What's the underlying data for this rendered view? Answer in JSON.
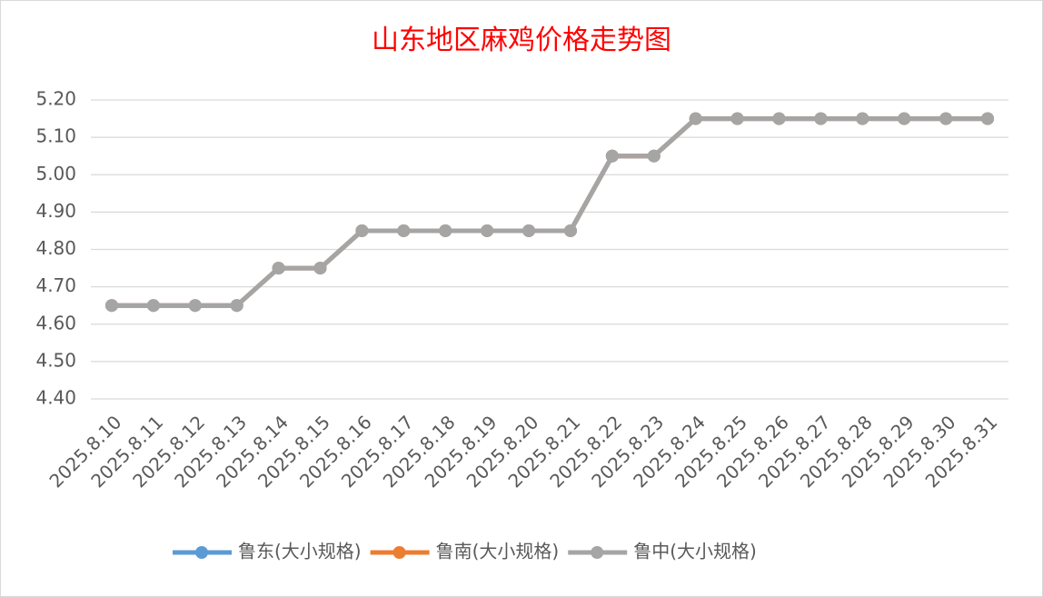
{
  "chart_data": {
    "type": "line",
    "title": "山东地区麻鸡价格走势图",
    "categories": [
      "2025.8.10",
      "2025.8.11",
      "2025.8.12",
      "2025.8.13",
      "2025.8.14",
      "2025.8.15",
      "2025.8.16",
      "2025.8.17",
      "2025.8.18",
      "2025.8.19",
      "2025.8.20",
      "2025.8.21",
      "2025.8.22",
      "2025.8.23",
      "2025.8.24",
      "2025.8.25",
      "2025.8.26",
      "2025.8.27",
      "2025.8.28",
      "2025.8.29",
      "2025.8.30",
      "2025.8.31"
    ],
    "series": [
      {
        "name": "鲁东(大小规格)",
        "color": "#5b9bd5",
        "values": [
          4.65,
          4.65,
          4.65,
          4.65,
          4.75,
          4.75,
          4.85,
          4.85,
          4.85,
          4.85,
          4.85,
          4.85,
          5.05,
          5.05,
          5.15,
          5.15,
          5.15,
          5.15,
          5.15,
          5.15,
          5.15,
          5.15
        ]
      },
      {
        "name": "鲁南(大小规格)",
        "color": "#ed7d31",
        "values": [
          4.65,
          4.65,
          4.65,
          4.65,
          4.75,
          4.75,
          4.85,
          4.85,
          4.85,
          4.85,
          4.85,
          4.85,
          5.05,
          5.05,
          5.15,
          5.15,
          5.15,
          5.15,
          5.15,
          5.15,
          5.15,
          5.15
        ]
      },
      {
        "name": "鲁中(大小规格)",
        "color": "#a5a5a5",
        "values": [
          4.65,
          4.65,
          4.65,
          4.65,
          4.75,
          4.75,
          4.85,
          4.85,
          4.85,
          4.85,
          4.85,
          4.85,
          5.05,
          5.05,
          5.15,
          5.15,
          5.15,
          5.15,
          5.15,
          5.15,
          5.15,
          5.15
        ]
      }
    ],
    "ylim": [
      4.4,
      5.2
    ],
    "yticks": [
      {
        "value": 4.4,
        "label": "4.40"
      },
      {
        "value": 4.5,
        "label": "4.50"
      },
      {
        "value": 4.6,
        "label": "4.60"
      },
      {
        "value": 4.7,
        "label": "4.70"
      },
      {
        "value": 4.8,
        "label": "4.80"
      },
      {
        "value": 4.9,
        "label": "4.90"
      },
      {
        "value": 5.0,
        "label": "5.00"
      },
      {
        "value": 5.1,
        "label": "5.10"
      },
      {
        "value": 5.2,
        "label": "5.20"
      }
    ],
    "grid": true,
    "legend": "bottom"
  }
}
